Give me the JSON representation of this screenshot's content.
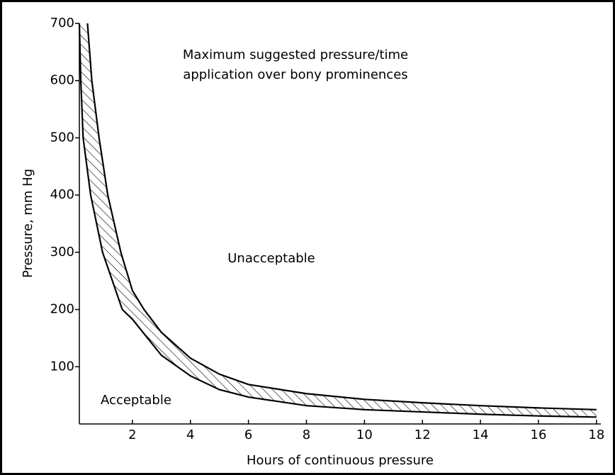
{
  "chart_data": {
    "type": "band",
    "title": [
      "Maximum suggested pressure/time",
      "application over bony prominences"
    ],
    "annotations": [
      "Unacceptable",
      "Acceptable"
    ],
    "xlabel": "Hours of continuous pressure",
    "ylabel": "Pressure, mm Hg",
    "series": [
      {
        "x": [
          0.45,
          0.6,
          0.85,
          1.15,
          1.6,
          2,
          2.4,
          3,
          4,
          5,
          6,
          8,
          10,
          12,
          14,
          16,
          18
        ],
        "values": [
          700,
          600,
          500,
          400,
          300,
          233,
          200,
          160,
          115,
          87,
          69,
          53,
          43,
          37,
          32,
          28,
          25
        ]
      },
      {
        "x": [
          0.17,
          0.22,
          0.3,
          0.56,
          0.97,
          1.65,
          2,
          3,
          4,
          5,
          6,
          8,
          10,
          12,
          14,
          16,
          18
        ],
        "values": [
          700,
          600,
          500,
          400,
          300,
          200,
          183,
          120,
          84,
          60,
          47,
          32,
          25,
          21,
          17,
          14,
          12
        ]
      }
    ],
    "color": "#000000",
    "fill": "hatched",
    "xlim": [
      0.17,
      18.15
    ],
    "xticks": [
      2,
      4,
      6,
      8,
      10,
      12,
      14,
      16,
      18
    ],
    "ylim": [
      0,
      700
    ],
    "yticks": [
      100,
      200,
      300,
      400,
      500,
      600,
      700
    ]
  }
}
